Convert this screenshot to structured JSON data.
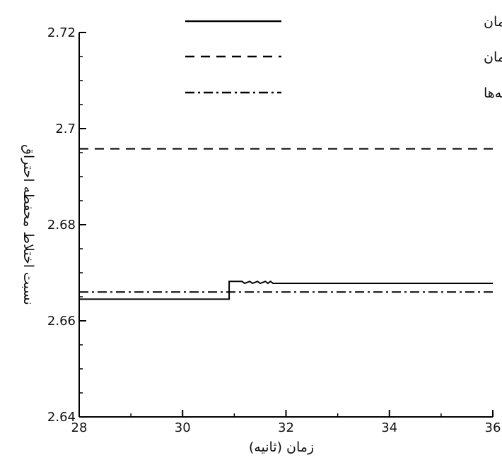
{
  "chart_data": {
    "type": "line",
    "xlabel": "زمان (ثانیه)",
    "ylabel": "نسبت اختلاط محفظه احتراق",
    "xlim": [
      28,
      36
    ],
    "ylim": [
      2.64,
      2.72
    ],
    "xticks": [
      28,
      30,
      32,
      34,
      36
    ],
    "xtick_labels": [
      "28",
      "30",
      "32",
      "34",
      "36"
    ],
    "yticks": [
      2.64,
      2.66,
      2.68,
      2.7,
      2.72
    ],
    "ytick_labels": [
      "2.64",
      "2.66",
      "2.68",
      "2.7",
      "2.72"
    ],
    "legend_position": "top-right",
    "grid": false,
    "series": [
      {
        "name": "حضور همزمان",
        "line_style": "solid",
        "x": [
          28,
          30.9,
          30.9,
          31.15,
          31.2,
          31.3,
          31.35,
          31.45,
          31.5,
          31.6,
          31.65,
          31.7,
          31.75,
          36
        ],
        "y": [
          2.6645,
          2.6645,
          2.6682,
          2.6682,
          2.6678,
          2.6682,
          2.6678,
          2.6682,
          2.6678,
          2.6682,
          2.6678,
          2.6682,
          2.6678,
          2.6678
        ]
      },
      {
        "name": "حضور سامانه تخلیه همزمان",
        "line_style": "dashed",
        "x": [
          28,
          36
        ],
        "y": [
          2.6958,
          2.6958
        ]
      },
      {
        "name": "عدم حضور سامانه‌ها",
        "line_style": "dashdot",
        "x": [
          28,
          36
        ],
        "y": [
          2.666,
          2.666
        ]
      }
    ]
  }
}
